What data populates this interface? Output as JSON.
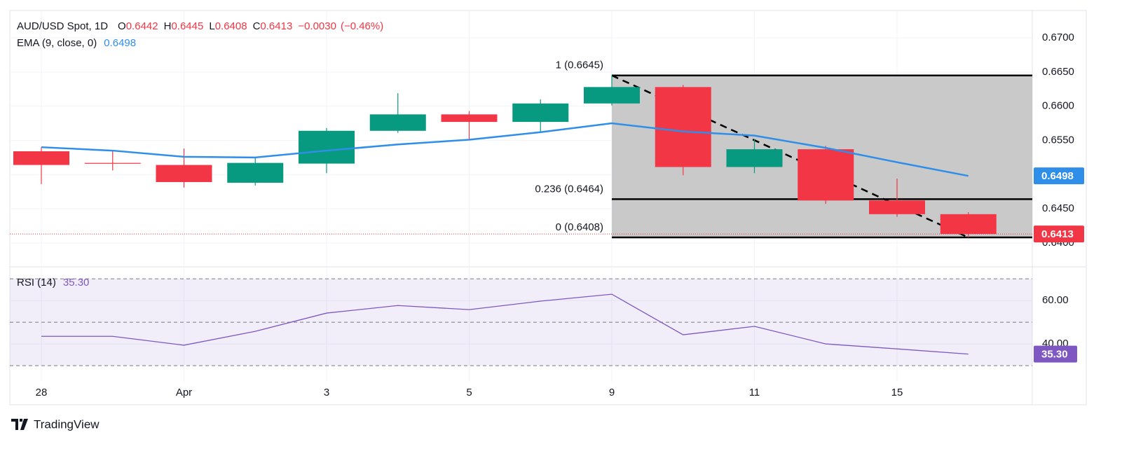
{
  "chart_data": {
    "type": "candlestick",
    "title": "AUD/USD Spot, 1D",
    "ohlc_labels": [
      {
        "key": "O",
        "value": "0.6442"
      },
      {
        "key": "H",
        "value": "0.6445"
      },
      {
        "key": "L",
        "value": "0.6408"
      },
      {
        "key": "C",
        "value": "0.6413"
      }
    ],
    "change": "−0.0030",
    "change_pct": "(−0.46%)",
    "categories": [
      "28",
      null,
      "Apr",
      null,
      "3",
      null,
      "5",
      null,
      "9",
      null,
      "11",
      null,
      "15",
      null
    ],
    "open": [
      0.6534,
      0.6517,
      0.6514,
      0.6488,
      0.6516,
      0.6564,
      0.6588,
      0.6577,
      0.6604,
      0.6628,
      0.6511,
      0.6537,
      0.6462,
      0.6442
    ],
    "high": [
      0.654,
      0.6535,
      0.6538,
      0.6525,
      0.6568,
      0.6619,
      0.6593,
      0.661,
      0.6645,
      0.6631,
      0.6552,
      0.6542,
      0.6494,
      0.6445
    ],
    "low": [
      0.6486,
      0.6506,
      0.6481,
      0.6484,
      0.6502,
      0.6561,
      0.6551,
      0.6561,
      0.6601,
      0.6499,
      0.6502,
      0.6457,
      0.6438,
      0.6408
    ],
    "close": [
      0.6514,
      0.6516,
      0.6489,
      0.6517,
      0.6564,
      0.6588,
      0.6577,
      0.6604,
      0.6628,
      0.6511,
      0.6537,
      0.6462,
      0.6442,
      0.6413
    ],
    "up_color": "#089981",
    "down_color": "#f23645",
    "ylim": [
      0.6366,
      0.674
    ],
    "yticks": [
      {
        "value": 0.64,
        "label": "0.6400"
      },
      {
        "value": 0.645,
        "label": "0.6450"
      },
      {
        "value": 0.65,
        "label": "0.6500"
      },
      {
        "value": 0.655,
        "label": "0.6550"
      },
      {
        "value": 0.66,
        "label": "0.6600"
      },
      {
        "value": 0.665,
        "label": "0.6650"
      },
      {
        "value": 0.67,
        "label": "0.6700"
      }
    ],
    "ema": {
      "name": "EMA (9, close, 0)",
      "value_label": "0.6498",
      "color": "#2f8fe8",
      "values": [
        0.654,
        0.6535,
        0.6526,
        0.6525,
        0.6535,
        0.6544,
        0.6551,
        0.6562,
        0.6575,
        0.6563,
        0.6557,
        0.6539,
        0.6518,
        0.6498
      ]
    },
    "fib": {
      "levels": [
        {
          "value": 0.6645,
          "label": "1 (0.6645)"
        },
        {
          "value": 0.6464,
          "label": "0.236 (0.6464)"
        },
        {
          "value": 0.6408,
          "label": "0 (0.6408)"
        }
      ]
    },
    "rsi": {
      "name": "RSI (14)",
      "value_label": "35.30",
      "color": "#7e57c2",
      "values": [
        43.5,
        43.5,
        39.4,
        45.8,
        54.2,
        57.7,
        55.8,
        59.7,
        62.9,
        44.2,
        48.1,
        40.0,
        37.7,
        35.3
      ],
      "ylim": [
        22.6,
        75.2
      ],
      "yticks": [
        {
          "value": 40,
          "label": "40.00"
        },
        {
          "value": 60,
          "label": "60.00"
        }
      ],
      "levels": [
        30,
        50,
        70
      ]
    }
  },
  "footer": {
    "brand": "TradingView"
  }
}
